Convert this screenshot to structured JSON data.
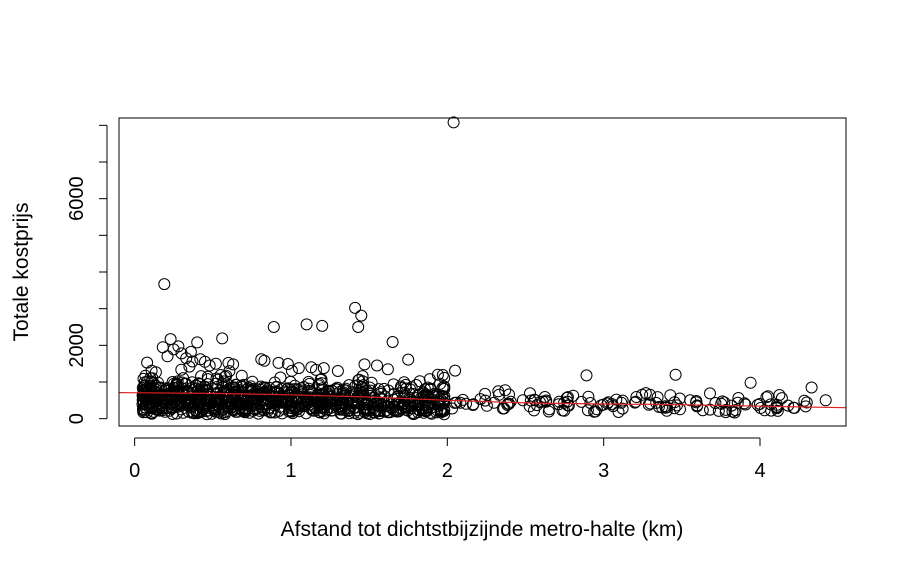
{
  "chart_data": {
    "type": "scatter",
    "title": "",
    "xlabel": "Afstand tot dichtstbijzijnde metro-halte (km)",
    "ylabel": "Totale kostprijs",
    "xlim": [
      -0.1,
      4.55
    ],
    "ylim": [
      -200,
      8200
    ],
    "x_ticks": [
      0,
      1,
      2,
      3,
      4
    ],
    "x_tick_labels": [
      "0",
      "1",
      "2",
      "3",
      "4"
    ],
    "y_ticks": [
      0,
      1000,
      2000,
      3000,
      4000,
      5000,
      6000,
      7000,
      8000
    ],
    "y_tick_labels": [
      "0",
      "",
      "2000",
      "",
      "",
      "",
      "6000",
      "",
      ""
    ],
    "grid": false,
    "legend": "none",
    "marker": "open-circle",
    "point_color": "#000000",
    "trend_color": "#e02020",
    "trend_line": {
      "x": [
        -0.1,
        0.5,
        1.0,
        1.5,
        2.0,
        2.5,
        3.0,
        3.5,
        4.0,
        4.55
      ],
      "y": [
        710,
        690,
        650,
        590,
        500,
        430,
        400,
        380,
        340,
        300
      ]
    },
    "points_x": [
      0.19,
      2.04,
      1.41,
      1.45,
      1.43,
      1.1,
      1.2,
      0.89,
      0.56,
      1.65,
      0.23,
      0.4,
      0.28,
      0.36,
      0.18,
      0.25,
      0.3,
      0.21,
      0.33,
      0.42,
      0.37,
      0.45,
      0.48,
      0.6,
      0.63,
      0.81,
      0.83,
      0.92,
      0.98,
      1.05,
      1.13,
      1.16,
      1.21,
      1.3,
      1.47,
      1.55,
      1.62,
      1.75,
      1.94,
      2.05,
      0.08,
      0.1,
      2.89,
      3.46,
      3.94,
      4.33,
      4.42,
      4.14,
      3.68,
      3.9,
      0.35,
      0.52
    ],
    "points_y": [
      3670,
      8080,
      3020,
      2810,
      2500,
      2570,
      2530,
      2500,
      2190,
      2090,
      2170,
      2080,
      1970,
      1820,
      1950,
      1890,
      1780,
      1700,
      1650,
      1620,
      1560,
      1550,
      1450,
      1520,
      1480,
      1620,
      1580,
      1520,
      1490,
      1380,
      1400,
      1330,
      1380,
      1300,
      1480,
      1450,
      1350,
      1610,
      1200,
      1310,
      1530,
      1100,
      1180,
      1200,
      980,
      850,
      500,
      560,
      690,
      420,
      1420,
      1500
    ],
    "cluster_seed": 20240611
  }
}
